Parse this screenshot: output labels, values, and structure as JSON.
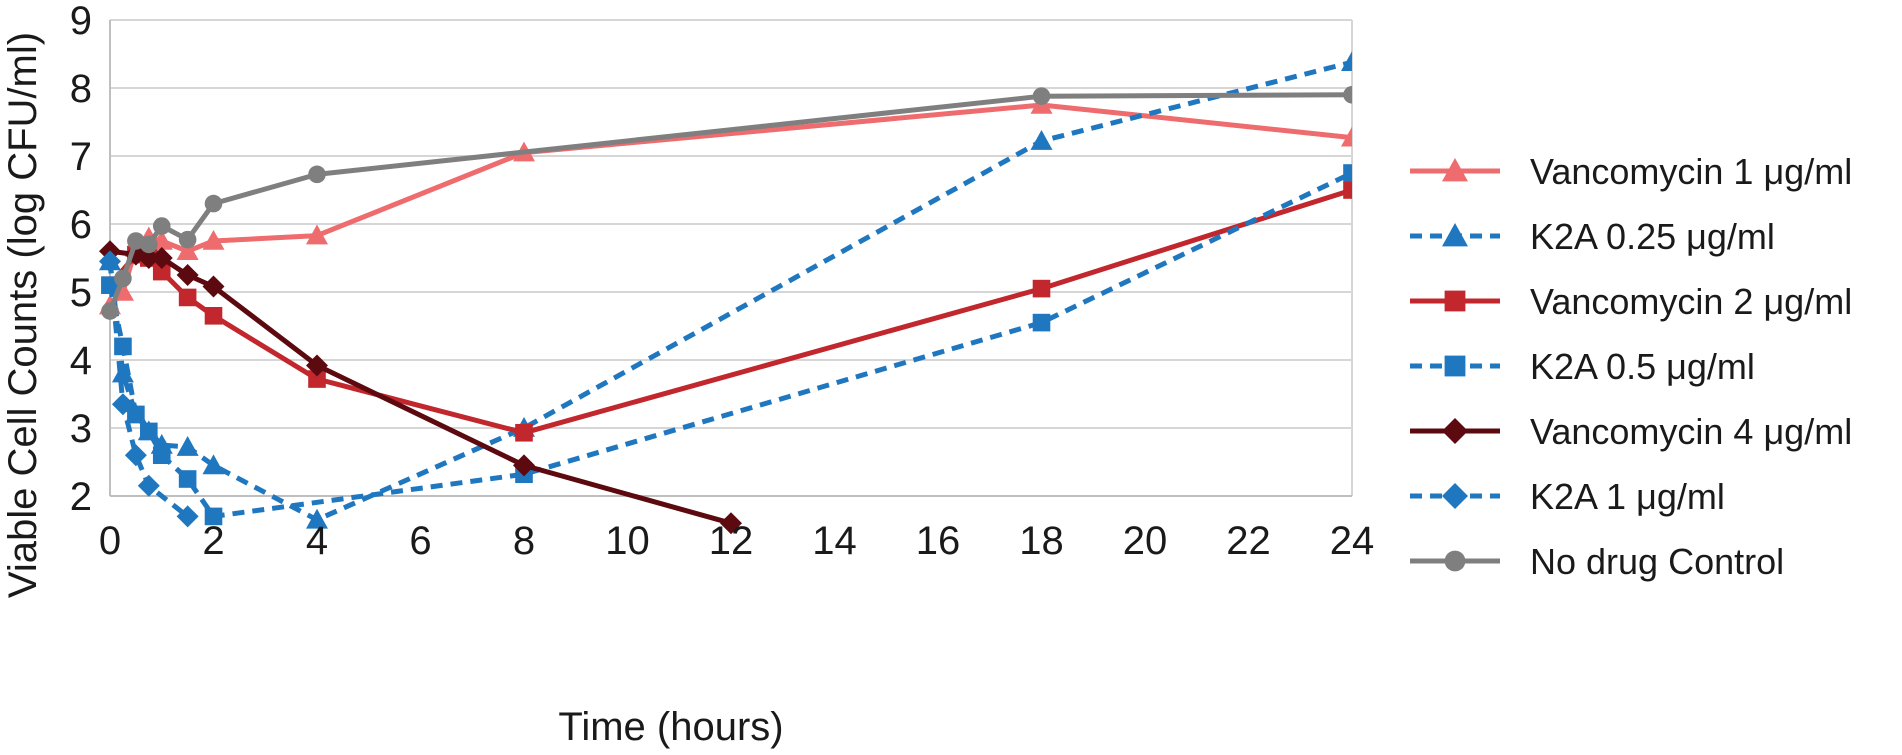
{
  "chart_data": {
    "type": "line",
    "xlabel": "Time (hours)",
    "ylabel": "Viable Cell Counts (log CFU/ml)",
    "ylim": [
      2,
      9
    ],
    "x_tick_labels": [
      "0",
      "2",
      "4",
      "6",
      "8",
      "10",
      "12",
      "14",
      "16",
      "18",
      "20",
      "22",
      "24"
    ],
    "y_tick_labels": [
      "2",
      "3",
      "4",
      "5",
      "6",
      "7",
      "8",
      "9"
    ],
    "grid": "horizontal",
    "legend_position": "right",
    "series": [
      {
        "name": "Vancomycin 1 μg/ml",
        "color": "#EE6B6E",
        "dash": "solid",
        "marker": "triangle",
        "points": [
          [
            0,
            4.8
          ],
          [
            0.25,
            5.0
          ],
          [
            0.5,
            5.65
          ],
          [
            0.75,
            5.8
          ],
          [
            1,
            5.75
          ],
          [
            1.5,
            5.6
          ],
          [
            2,
            5.75
          ],
          [
            4,
            5.83
          ],
          [
            8,
            7.05
          ],
          [
            18,
            7.75
          ],
          [
            24,
            7.27
          ]
        ]
      },
      {
        "name": "K2A 0.25 μg/ml",
        "color": "#1F77C0",
        "dash": "dashed",
        "marker": "triangle",
        "points": [
          [
            0,
            5.45
          ],
          [
            0.25,
            3.8
          ],
          [
            0.5,
            3.2
          ],
          [
            0.75,
            2.95
          ],
          [
            1,
            2.75
          ],
          [
            1.5,
            2.72
          ],
          [
            2,
            2.45
          ],
          [
            4,
            1.65
          ],
          [
            8,
            3.0
          ],
          [
            18,
            7.22
          ],
          [
            24,
            8.38
          ]
        ]
      },
      {
        "name": "Vancomycin 2 μg/ml",
        "color": "#C1272D",
        "dash": "solid",
        "marker": "square",
        "points": [
          [
            0,
            5.1
          ],
          [
            0.5,
            5.55
          ],
          [
            0.75,
            5.5
          ],
          [
            1,
            5.3
          ],
          [
            1.5,
            4.92
          ],
          [
            2,
            4.65
          ],
          [
            4,
            3.72
          ],
          [
            8,
            2.93
          ],
          [
            18,
            5.05
          ],
          [
            24,
            6.5
          ]
        ]
      },
      {
        "name": "K2A 0.5 μg/ml",
        "color": "#1F77C0",
        "dash": "dashed",
        "marker": "square",
        "points": [
          [
            0,
            5.1
          ],
          [
            0.25,
            4.2
          ],
          [
            0.5,
            3.2
          ],
          [
            0.75,
            2.95
          ],
          [
            1,
            2.6
          ],
          [
            1.5,
            2.25
          ],
          [
            2,
            1.7
          ],
          [
            8,
            2.32
          ],
          [
            18,
            4.55
          ],
          [
            24,
            6.75
          ]
        ]
      },
      {
        "name": "Vancomycin 4 μg/ml",
        "color": "#5C0A10",
        "dash": "solid",
        "marker": "diamond",
        "points": [
          [
            0,
            5.6
          ],
          [
            0.5,
            5.55
          ],
          [
            0.75,
            5.5
          ],
          [
            1,
            5.5
          ],
          [
            1.5,
            5.25
          ],
          [
            2,
            5.08
          ],
          [
            4,
            3.92
          ],
          [
            8,
            2.45
          ],
          [
            12,
            1.6
          ]
        ]
      },
      {
        "name": "K2A 1 μg/ml",
        "color": "#1F77C0",
        "dash": "dashed",
        "marker": "diamond",
        "points": [
          [
            0,
            5.45
          ],
          [
            0.25,
            3.35
          ],
          [
            0.5,
            2.6
          ],
          [
            0.75,
            2.15
          ],
          [
            1.5,
            1.7
          ]
        ]
      },
      {
        "name": "No drug Control",
        "color": "#7F7F7F",
        "dash": "solid",
        "marker": "circle",
        "points": [
          [
            0,
            4.72
          ],
          [
            0.25,
            5.2
          ],
          [
            0.5,
            5.75
          ],
          [
            0.75,
            5.7
          ],
          [
            1,
            5.97
          ],
          [
            1.5,
            5.77
          ],
          [
            2,
            6.3
          ],
          [
            4,
            6.73
          ],
          [
            18,
            7.88
          ],
          [
            24,
            7.9
          ]
        ]
      }
    ]
  }
}
